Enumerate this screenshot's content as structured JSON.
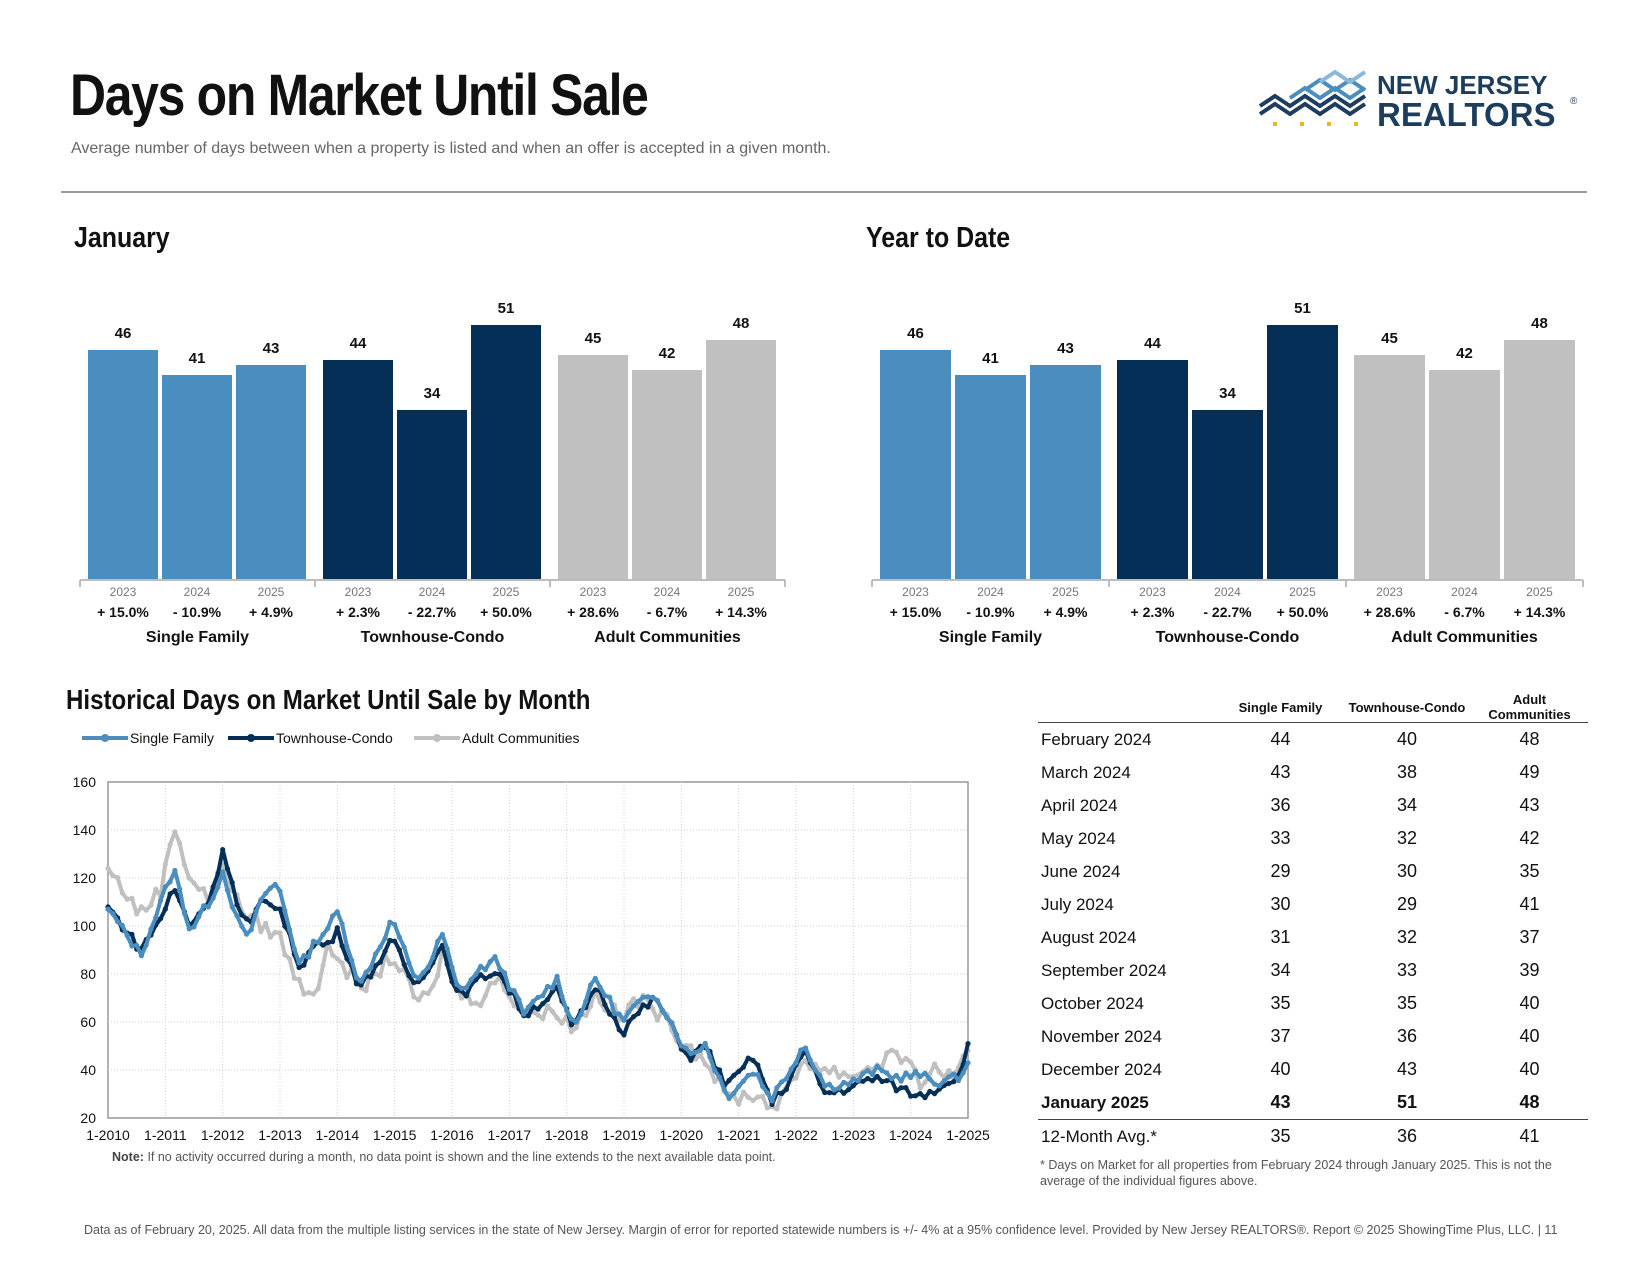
{
  "header": {
    "title": "Days on Market Until Sale",
    "subtitle": "Average number of days between when a property is listed and when an offer is accepted in a given month.",
    "logo_line1": "NEW JERSEY",
    "logo_line2": "REALTORS",
    "logo_mark": "®"
  },
  "colors": {
    "single_family": "#4a8dbf",
    "townhouse": "#062f57",
    "adult": "#c0c0c0",
    "axis": "#bdbdbd"
  },
  "chart_data": [
    {
      "type": "bar",
      "title": "January",
      "groups": [
        {
          "name": "Single Family",
          "categories": [
            "2023",
            "2024",
            "2025"
          ],
          "values": [
            46,
            41,
            43
          ],
          "changes": [
            "+ 15.0%",
            "- 10.9%",
            "+ 4.9%"
          ]
        },
        {
          "name": "Townhouse-Condo",
          "categories": [
            "2023",
            "2024",
            "2025"
          ],
          "values": [
            44,
            34,
            51
          ],
          "changes": [
            "+ 2.3%",
            "- 22.7%",
            "+ 50.0%"
          ]
        },
        {
          "name": "Adult Communities",
          "categories": [
            "2023",
            "2024",
            "2025"
          ],
          "values": [
            45,
            42,
            48
          ],
          "changes": [
            "+ 28.6%",
            "- 6.7%",
            "+ 14.3%"
          ]
        }
      ]
    },
    {
      "type": "bar",
      "title": "Year to Date",
      "groups": [
        {
          "name": "Single Family",
          "categories": [
            "2023",
            "2024",
            "2025"
          ],
          "values": [
            46,
            41,
            43
          ],
          "changes": [
            "+ 15.0%",
            "- 10.9%",
            "+ 4.9%"
          ]
        },
        {
          "name": "Townhouse-Condo",
          "categories": [
            "2023",
            "2024",
            "2025"
          ],
          "values": [
            44,
            34,
            51
          ],
          "changes": [
            "+ 2.3%",
            "- 22.7%",
            "+ 50.0%"
          ]
        },
        {
          "name": "Adult Communities",
          "categories": [
            "2023",
            "2024",
            "2025"
          ],
          "values": [
            45,
            42,
            48
          ],
          "changes": [
            "+ 28.6%",
            "- 6.7%",
            "+ 14.3%"
          ]
        }
      ]
    },
    {
      "type": "line",
      "title": "Historical Days on Market Until Sale by Month",
      "ylim": [
        20,
        160
      ],
      "yticks": [
        20,
        40,
        60,
        80,
        100,
        120,
        140,
        160
      ],
      "xticks": [
        "1-2010",
        "1-2011",
        "1-2012",
        "1-2013",
        "1-2014",
        "1-2015",
        "1-2016",
        "1-2017",
        "1-2018",
        "1-2019",
        "1-2020",
        "1-2021",
        "1-2022",
        "1-2023",
        "1-2024",
        "1-2025"
      ],
      "grid": true,
      "legend": "top-left",
      "note_label": "Note:",
      "note": "If no activity occurred during a month, no data point is shown and the line extends to the next available data point.",
      "series": [
        {
          "name": "Single Family",
          "anchors": [
            [
              0,
              107
            ],
            [
              6,
              88
            ],
            [
              10,
              112
            ],
            [
              12,
              124
            ],
            [
              15,
              98
            ],
            [
              19,
              112
            ],
            [
              21,
              123
            ],
            [
              24,
              99
            ],
            [
              26,
              96
            ],
            [
              28,
              112
            ],
            [
              31,
              118
            ],
            [
              35,
              83
            ],
            [
              38,
              94
            ],
            [
              40,
              99
            ],
            [
              42,
              106
            ],
            [
              46,
              75
            ],
            [
              52,
              103
            ],
            [
              56,
              77
            ],
            [
              59,
              85
            ],
            [
              61,
              97
            ],
            [
              64,
              72
            ],
            [
              68,
              82
            ],
            [
              71,
              86
            ],
            [
              76,
              63
            ],
            [
              79,
              71
            ],
            [
              82,
              78
            ],
            [
              85,
              58
            ],
            [
              89,
              78
            ],
            [
              94,
              60
            ],
            [
              96,
              66
            ],
            [
              100,
              72
            ],
            [
              106,
              46
            ],
            [
              109,
              51
            ],
            [
              113,
              29
            ],
            [
              118,
              40
            ],
            [
              121,
              28
            ],
            [
              124,
              38
            ],
            [
              127,
              51
            ],
            [
              131,
              33
            ],
            [
              136,
              35
            ],
            [
              140,
              40
            ],
            [
              144,
              37
            ],
            [
              148,
              38
            ],
            [
              151,
              35
            ],
            [
              154,
              36
            ],
            [
              156,
              38
            ],
            [
              157,
              43
            ]
          ]
        },
        {
          "name": "Townhouse-Condo",
          "anchors": [
            [
              0,
              108
            ],
            [
              6,
              90
            ],
            [
              10,
              105
            ],
            [
              12,
              116
            ],
            [
              15,
              100
            ],
            [
              19,
              113
            ],
            [
              21,
              133
            ],
            [
              24,
              105
            ],
            [
              26,
              100
            ],
            [
              28,
              110
            ],
            [
              31,
              109
            ],
            [
              35,
              83
            ],
            [
              38,
              93
            ],
            [
              40,
              92
            ],
            [
              42,
              98
            ],
            [
              46,
              74
            ],
            [
              52,
              94
            ],
            [
              56,
              75
            ],
            [
              59,
              85
            ],
            [
              61,
              92
            ],
            [
              64,
              70
            ],
            [
              68,
              78
            ],
            [
              71,
              82
            ],
            [
              76,
              63
            ],
            [
              79,
              68
            ],
            [
              82,
              73
            ],
            [
              85,
              57
            ],
            [
              89,
              75
            ],
            [
              94,
              56
            ],
            [
              96,
              62
            ],
            [
              100,
              70
            ],
            [
              106,
              45
            ],
            [
              109,
              50
            ],
            [
              113,
              33
            ],
            [
              118,
              46
            ],
            [
              121,
              26
            ],
            [
              124,
              34
            ],
            [
              127,
              48
            ],
            [
              131,
              30
            ],
            [
              136,
              33
            ],
            [
              140,
              37
            ],
            [
              144,
              33
            ],
            [
              148,
              29
            ],
            [
              151,
              32
            ],
            [
              154,
              36
            ],
            [
              156,
              40
            ],
            [
              157,
              51
            ]
          ]
        },
        {
          "name": "Adult Communities",
          "anchors": [
            [
              0,
              124
            ],
            [
              6,
              105
            ],
            [
              10,
              117
            ],
            [
              12,
              143
            ],
            [
              15,
              120
            ],
            [
              19,
              110
            ],
            [
              21,
              128
            ],
            [
              24,
              107
            ],
            [
              26,
              104
            ],
            [
              28,
              100
            ],
            [
              31,
              97
            ],
            [
              35,
              75
            ],
            [
              38,
              73
            ],
            [
              40,
              90
            ],
            [
              42,
              88
            ],
            [
              46,
              73
            ],
            [
              52,
              88
            ],
            [
              56,
              70
            ],
            [
              59,
              70
            ],
            [
              61,
              90
            ],
            [
              64,
              72
            ],
            [
              68,
              70
            ],
            [
              71,
              78
            ],
            [
              76,
              65
            ],
            [
              79,
              63
            ],
            [
              82,
              65
            ],
            [
              85,
              57
            ],
            [
              89,
              72
            ],
            [
              94,
              60
            ],
            [
              96,
              70
            ],
            [
              100,
              65
            ],
            [
              106,
              50
            ],
            [
              109,
              45
            ],
            [
              113,
              28
            ],
            [
              118,
              30
            ],
            [
              121,
              25
            ],
            [
              124,
              30
            ],
            [
              127,
              45
            ],
            [
              131,
              40
            ],
            [
              136,
              38
            ],
            [
              140,
              42
            ],
            [
              144,
              48
            ],
            [
              148,
              35
            ],
            [
              151,
              40
            ],
            [
              154,
              38
            ],
            [
              156,
              42
            ],
            [
              157,
              48
            ]
          ]
        }
      ]
    }
  ],
  "table": {
    "columns": [
      "Single Family",
      "Townhouse-Condo",
      "Adult Communities"
    ],
    "rows": [
      {
        "label": "February 2024",
        "values": [
          "44",
          "40",
          "48"
        ]
      },
      {
        "label": "March 2024",
        "values": [
          "43",
          "38",
          "49"
        ]
      },
      {
        "label": "April 2024",
        "values": [
          "36",
          "34",
          "43"
        ]
      },
      {
        "label": "May 2024",
        "values": [
          "33",
          "32",
          "42"
        ]
      },
      {
        "label": "June 2024",
        "values": [
          "29",
          "30",
          "35"
        ]
      },
      {
        "label": "July 2024",
        "values": [
          "30",
          "29",
          "41"
        ]
      },
      {
        "label": "August 2024",
        "values": [
          "31",
          "32",
          "37"
        ]
      },
      {
        "label": "September 2024",
        "values": [
          "34",
          "33",
          "39"
        ]
      },
      {
        "label": "October 2024",
        "values": [
          "35",
          "35",
          "40"
        ]
      },
      {
        "label": "November 2024",
        "values": [
          "37",
          "36",
          "40"
        ]
      },
      {
        "label": "December 2024",
        "values": [
          "40",
          "43",
          "40"
        ]
      },
      {
        "label": "January 2025",
        "values": [
          "43",
          "51",
          "48"
        ]
      }
    ],
    "average": {
      "label": "12-Month Avg.*",
      "values": [
        "35",
        "36",
        "41"
      ]
    },
    "footnote": "* Days on Market for all properties from February 2024 through January 2025. This is not the average of the individual figures above."
  },
  "footer": "Data as of February 20, 2025. All data from the multiple listing services in the state of New Jersey. Margin of error for reported statewide numbers is +/- 4% at a 95% confidence level. Provided by New Jersey REALTORS®. Report © 2025 ShowingTime Plus, LLC. | 11"
}
